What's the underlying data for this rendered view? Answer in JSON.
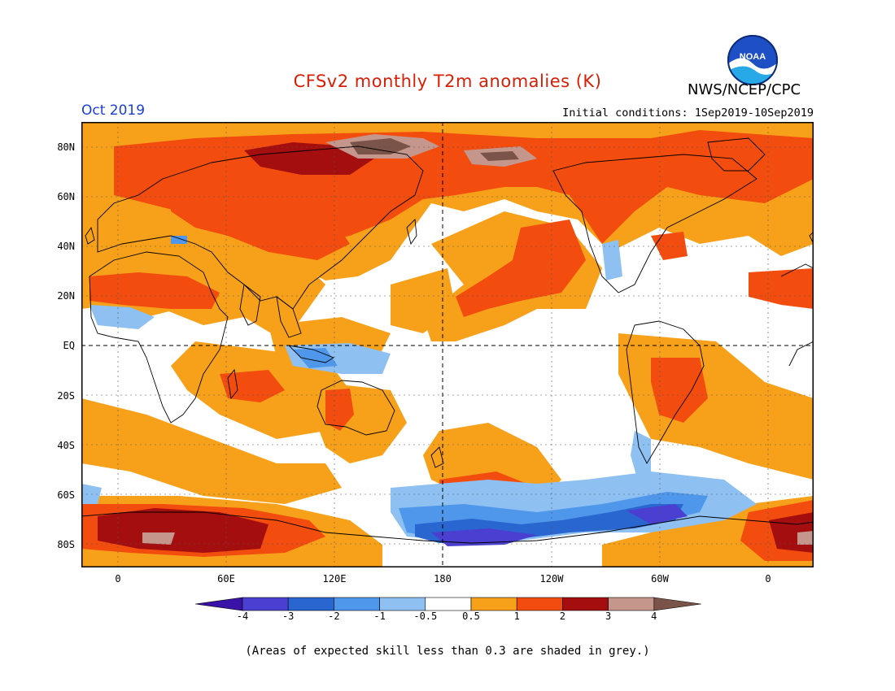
{
  "title": "CFSv2 monthly T2m anomalies (K)",
  "agency": "NWS/NCEP/CPC",
  "logo_text": "NOAA",
  "valid_month": "Oct 2019",
  "initial_conditions": "Initial conditions: 1Sep2019-10Sep2019",
  "lat_labels": [
    "80N",
    "60N",
    "40N",
    "20N",
    "EQ",
    "20S",
    "40S",
    "60S",
    "80S"
  ],
  "lon_labels": [
    "0",
    "60E",
    "120E",
    "180",
    "120W",
    "60W",
    "0"
  ],
  "colorbar": {
    "labels": [
      "-4",
      "-3",
      "-2",
      "-1",
      "-0.5",
      "0.5",
      "1",
      "2",
      "3",
      "4"
    ],
    "colors": [
      "#3b12a8",
      "#4a3fd0",
      "#2a66cf",
      "#4f97ea",
      "#8ec0f2",
      "#ffffff",
      "#f7a11a",
      "#f24d0e",
      "#a40e0e",
      "#c4968c",
      "#7a5448"
    ]
  },
  "footnote": "(Areas of expected skill less than 0.3 are shaded in grey.)"
}
